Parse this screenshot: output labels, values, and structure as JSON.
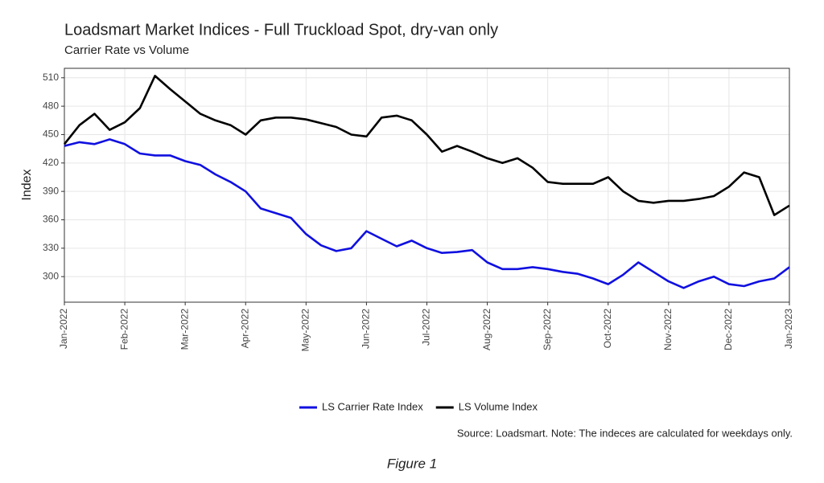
{
  "chart_data": {
    "type": "line",
    "title": "Loadsmart Market Indices - Full Truckload Spot, dry-van only",
    "subtitle": "Carrier Rate vs Volume",
    "y_label": "Index",
    "source": "Source: Loadsmart. Note: The indeces are calculated for weekdays only.",
    "caption": "Figure 1",
    "x": [
      0,
      0.25,
      0.5,
      0.75,
      1,
      1.25,
      1.5,
      1.75,
      2,
      2.25,
      2.5,
      2.75,
      3,
      3.25,
      3.5,
      3.75,
      4,
      4.25,
      4.5,
      4.75,
      5,
      5.25,
      5.5,
      5.75,
      6,
      6.25,
      6.5,
      6.75,
      7,
      7.25,
      7.5,
      7.75,
      8,
      8.25,
      8.5,
      8.75,
      9,
      9.25,
      9.5,
      9.75,
      10,
      10.25,
      10.5,
      10.75,
      11,
      11.25,
      11.5,
      11.75,
      12
    ],
    "series": [
      {
        "name": "LS Carrier Rate Index",
        "color": "#1010e0",
        "values": [
          438,
          442,
          440,
          445,
          440,
          430,
          428,
          428,
          422,
          418,
          408,
          400,
          390,
          372,
          367,
          362,
          345,
          333,
          327,
          330,
          348,
          340,
          332,
          338,
          330,
          325,
          326,
          328,
          315,
          308,
          308,
          310,
          308,
          305,
          303,
          298,
          292,
          302,
          315,
          305,
          295,
          288,
          295,
          300,
          292,
          290,
          295,
          298,
          310
        ]
      },
      {
        "name": "LS Volume Index",
        "color": "#000000",
        "values": [
          440,
          460,
          472,
          455,
          463,
          478,
          512,
          498,
          485,
          472,
          465,
          460,
          450,
          465,
          468,
          468,
          466,
          462,
          458,
          450,
          448,
          468,
          470,
          465,
          450,
          432,
          438,
          432,
          425,
          420,
          425,
          415,
          400,
          398,
          398,
          398,
          405,
          390,
          380,
          378,
          380,
          380,
          382,
          385,
          395,
          410,
          405,
          365,
          375
        ]
      }
    ],
    "xlim": [
      0,
      12
    ],
    "xticks": [
      {
        "value": 0,
        "label": "Jan-2022"
      },
      {
        "value": 1,
        "label": "Feb-2022"
      },
      {
        "value": 2,
        "label": "Mar-2022"
      },
      {
        "value": 3,
        "label": "Apr-2022"
      },
      {
        "value": 4,
        "label": "May-2022"
      },
      {
        "value": 5,
        "label": "Jun-2022"
      },
      {
        "value": 6,
        "label": "Jul-2022"
      },
      {
        "value": 7,
        "label": "Aug-2022"
      },
      {
        "value": 8,
        "label": "Sep-2022"
      },
      {
        "value": 9,
        "label": "Oct-2022"
      },
      {
        "value": 10,
        "label": "Nov-2022"
      },
      {
        "value": 11,
        "label": "Dec-2022"
      },
      {
        "value": 12,
        "label": "Jan-2023"
      }
    ],
    "ylim": [
      273,
      520
    ],
    "yticks": [
      300,
      330,
      360,
      390,
      420,
      450,
      480,
      510
    ],
    "grid": true,
    "legend": "bottom"
  }
}
